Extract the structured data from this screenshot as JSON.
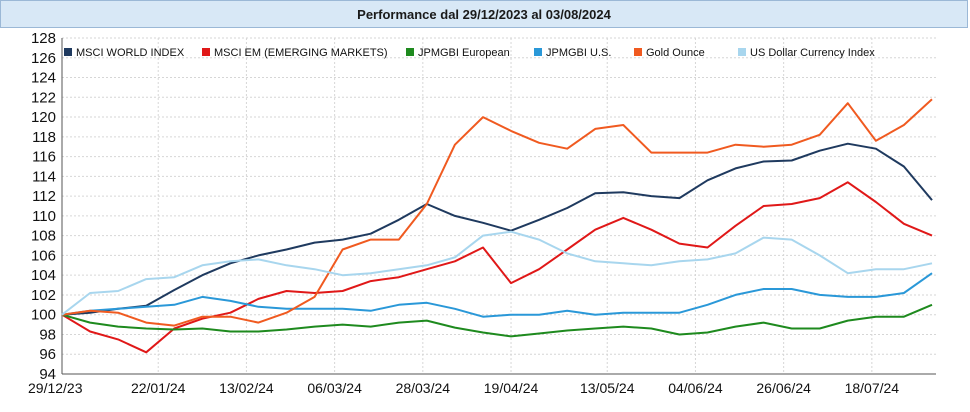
{
  "chart_data": {
    "type": "line",
    "title": "Performance dal 29/12/2023 al 03/08/2024",
    "xlabel": "",
    "ylabel": "",
    "ylim": [
      94,
      128
    ],
    "y_ticks": [
      94,
      96,
      98,
      100,
      102,
      104,
      106,
      108,
      110,
      112,
      114,
      116,
      118,
      120,
      122,
      124,
      126,
      128
    ],
    "x_tick_labels": [
      "29/12/23",
      "22/01/24",
      "13/02/24",
      "06/03/24",
      "28/03/24",
      "19/04/24",
      "13/05/24",
      "04/06/24",
      "26/06/24",
      "18/07/24"
    ],
    "x_tick_dates": [
      "2023-12-29",
      "2024-01-22",
      "2024-02-13",
      "2024-03-06",
      "2024-03-28",
      "2024-04-19",
      "2024-05-13",
      "2024-06-04",
      "2024-06-26",
      "2024-07-18"
    ],
    "x_range": [
      "2023-12-29",
      "2024-08-03"
    ],
    "grid": true,
    "legend_placement": "top",
    "series": [
      {
        "name": "MSCI WORLD INDEX",
        "color": "#1f3a5f",
        "x": [
          "2023-12-29",
          "2024-01-05",
          "2024-01-12",
          "2024-01-19",
          "2024-01-26",
          "2024-02-02",
          "2024-02-09",
          "2024-02-16",
          "2024-02-23",
          "2024-03-01",
          "2024-03-08",
          "2024-03-15",
          "2024-03-22",
          "2024-03-29",
          "2024-04-05",
          "2024-04-12",
          "2024-04-19",
          "2024-04-26",
          "2024-05-03",
          "2024-05-10",
          "2024-05-17",
          "2024-05-24",
          "2024-05-31",
          "2024-06-07",
          "2024-06-14",
          "2024-06-21",
          "2024-06-28",
          "2024-07-05",
          "2024-07-12",
          "2024-07-19",
          "2024-07-26",
          "2024-08-02"
        ],
        "values": [
          100.0,
          100.2,
          100.6,
          100.9,
          102.5,
          104.0,
          105.2,
          106.0,
          106.6,
          107.3,
          107.6,
          108.2,
          109.6,
          111.2,
          110.0,
          109.3,
          108.5,
          109.6,
          110.8,
          112.3,
          112.4,
          112.0,
          111.8,
          113.6,
          114.8,
          115.5,
          115.6,
          116.6,
          117.3,
          116.8,
          115.0,
          111.6
        ]
      },
      {
        "name": "MSCI EM (EMERGING MARKETS)",
        "color": "#e01818",
        "x": [
          "2023-12-29",
          "2024-01-05",
          "2024-01-12",
          "2024-01-19",
          "2024-01-26",
          "2024-02-02",
          "2024-02-09",
          "2024-02-16",
          "2024-02-23",
          "2024-03-01",
          "2024-03-08",
          "2024-03-15",
          "2024-03-22",
          "2024-03-29",
          "2024-04-05",
          "2024-04-12",
          "2024-04-19",
          "2024-04-26",
          "2024-05-03",
          "2024-05-10",
          "2024-05-17",
          "2024-05-24",
          "2024-05-31",
          "2024-06-07",
          "2024-06-14",
          "2024-06-21",
          "2024-06-28",
          "2024-07-05",
          "2024-07-12",
          "2024-07-19",
          "2024-07-26",
          "2024-08-02"
        ],
        "values": [
          100.0,
          98.3,
          97.5,
          96.2,
          98.6,
          99.6,
          100.2,
          101.6,
          102.4,
          102.2,
          102.4,
          103.4,
          103.8,
          104.6,
          105.4,
          106.8,
          103.2,
          104.6,
          106.6,
          108.6,
          109.8,
          108.6,
          107.2,
          106.8,
          109.0,
          111.0,
          111.2,
          111.8,
          113.4,
          111.4,
          109.2,
          108.0
        ]
      },
      {
        "name": "JPMGBI European",
        "color": "#1e8a1e",
        "x": [
          "2023-12-29",
          "2024-01-05",
          "2024-01-12",
          "2024-01-19",
          "2024-01-26",
          "2024-02-02",
          "2024-02-09",
          "2024-02-16",
          "2024-02-23",
          "2024-03-01",
          "2024-03-08",
          "2024-03-15",
          "2024-03-22",
          "2024-03-29",
          "2024-04-05",
          "2024-04-12",
          "2024-04-19",
          "2024-04-26",
          "2024-05-03",
          "2024-05-10",
          "2024-05-17",
          "2024-05-24",
          "2024-05-31",
          "2024-06-07",
          "2024-06-14",
          "2024-06-21",
          "2024-06-28",
          "2024-07-05",
          "2024-07-12",
          "2024-07-19",
          "2024-07-26",
          "2024-08-02"
        ],
        "values": [
          100.0,
          99.2,
          98.8,
          98.6,
          98.5,
          98.6,
          98.3,
          98.3,
          98.5,
          98.8,
          99.0,
          98.8,
          99.2,
          99.4,
          98.7,
          98.2,
          97.8,
          98.1,
          98.4,
          98.6,
          98.8,
          98.6,
          98.0,
          98.2,
          98.8,
          99.2,
          98.6,
          98.6,
          99.4,
          99.8,
          99.8,
          101.0
        ]
      },
      {
        "name": "JPMGBI U.S.",
        "color": "#2a98d8",
        "x": [
          "2023-12-29",
          "2024-01-05",
          "2024-01-12",
          "2024-01-19",
          "2024-01-26",
          "2024-02-02",
          "2024-02-09",
          "2024-02-16",
          "2024-02-23",
          "2024-03-01",
          "2024-03-08",
          "2024-03-15",
          "2024-03-22",
          "2024-03-29",
          "2024-04-05",
          "2024-04-12",
          "2024-04-19",
          "2024-04-26",
          "2024-05-03",
          "2024-05-10",
          "2024-05-17",
          "2024-05-24",
          "2024-05-31",
          "2024-06-07",
          "2024-06-14",
          "2024-06-21",
          "2024-06-28",
          "2024-07-05",
          "2024-07-12",
          "2024-07-19",
          "2024-07-26",
          "2024-08-02"
        ],
        "values": [
          100.0,
          100.4,
          100.6,
          100.8,
          101.0,
          101.8,
          101.4,
          100.8,
          100.6,
          100.6,
          100.6,
          100.4,
          101.0,
          101.2,
          100.6,
          99.8,
          100.0,
          100.0,
          100.4,
          100.0,
          100.2,
          100.2,
          100.2,
          101.0,
          102.0,
          102.6,
          102.6,
          102.0,
          101.8,
          101.8,
          102.2,
          104.2
        ]
      },
      {
        "name": "Gold Ounce",
        "color": "#f05a20",
        "x": [
          "2023-12-29",
          "2024-01-05",
          "2024-01-12",
          "2024-01-19",
          "2024-01-26",
          "2024-02-02",
          "2024-02-09",
          "2024-02-16",
          "2024-02-23",
          "2024-03-01",
          "2024-03-08",
          "2024-03-15",
          "2024-03-22",
          "2024-03-29",
          "2024-04-05",
          "2024-04-12",
          "2024-04-19",
          "2024-04-26",
          "2024-05-03",
          "2024-05-10",
          "2024-05-17",
          "2024-05-24",
          "2024-05-31",
          "2024-06-07",
          "2024-06-14",
          "2024-06-21",
          "2024-06-28",
          "2024-07-05",
          "2024-07-12",
          "2024-07-19",
          "2024-07-26",
          "2024-08-02"
        ],
        "values": [
          100.0,
          100.4,
          100.2,
          99.2,
          98.9,
          99.8,
          99.8,
          99.2,
          100.2,
          101.8,
          106.6,
          107.6,
          107.6,
          111.2,
          117.2,
          120.0,
          118.6,
          117.4,
          116.8,
          118.8,
          119.2,
          116.4,
          116.4,
          116.4,
          117.2,
          117.0,
          117.2,
          118.2,
          121.4,
          117.6,
          119.2,
          121.8
        ]
      },
      {
        "name": "US Dollar Currency Index",
        "color": "#a8d6ee",
        "x": [
          "2023-12-29",
          "2024-01-05",
          "2024-01-12",
          "2024-01-19",
          "2024-01-26",
          "2024-02-02",
          "2024-02-09",
          "2024-02-16",
          "2024-02-23",
          "2024-03-01",
          "2024-03-08",
          "2024-03-15",
          "2024-03-22",
          "2024-03-29",
          "2024-04-05",
          "2024-04-12",
          "2024-04-19",
          "2024-04-26",
          "2024-05-03",
          "2024-05-10",
          "2024-05-17",
          "2024-05-24",
          "2024-05-31",
          "2024-06-07",
          "2024-06-14",
          "2024-06-21",
          "2024-06-28",
          "2024-07-05",
          "2024-07-12",
          "2024-07-19",
          "2024-07-26",
          "2024-08-02"
        ],
        "values": [
          100.0,
          102.2,
          102.4,
          103.6,
          103.8,
          105.0,
          105.4,
          105.6,
          105.0,
          104.6,
          104.0,
          104.2,
          104.6,
          105.0,
          105.8,
          108.0,
          108.4,
          107.6,
          106.2,
          105.4,
          105.2,
          105.0,
          105.4,
          105.6,
          106.2,
          107.8,
          107.6,
          106.0,
          104.2,
          104.6,
          104.6,
          105.2
        ]
      }
    ]
  }
}
